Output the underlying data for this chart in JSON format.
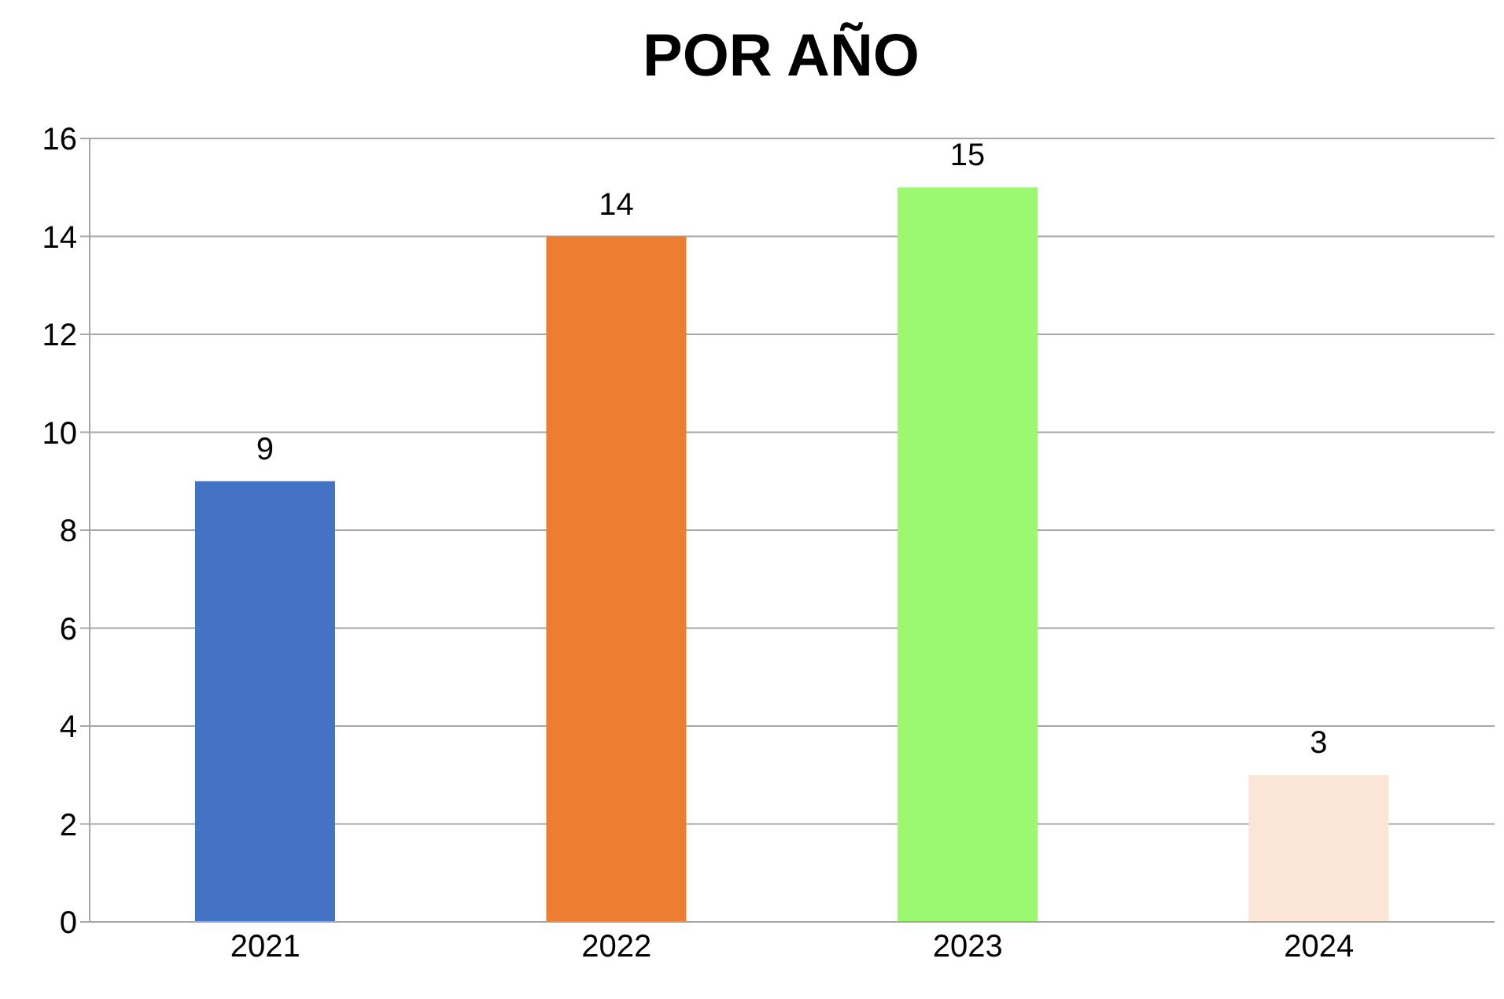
{
  "chart_data": {
    "type": "bar",
    "title": "POR AÑO",
    "categories": [
      "2021",
      "2022",
      "2023",
      "2024"
    ],
    "values": [
      9,
      14,
      15,
      3
    ],
    "colors": [
      "#4472c4",
      "#ed7d31",
      "#9cf870",
      "#fbe5d6"
    ],
    "ylim": [
      0,
      16
    ],
    "yticks": [
      0,
      2,
      4,
      6,
      8,
      10,
      12,
      14,
      16
    ],
    "grid": "y",
    "data_labels": true
  }
}
